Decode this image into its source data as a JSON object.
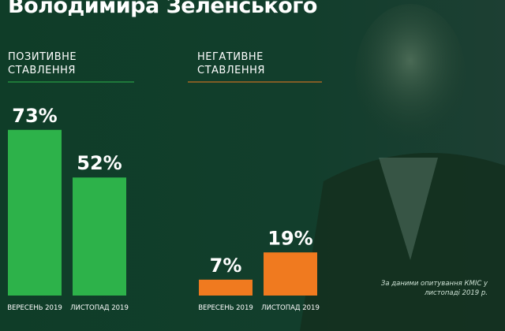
{
  "title": "Володимира Зеленського",
  "note": "За даними опитування КМІС у листопаді 2019 р.",
  "chart_data": [
    {
      "type": "bar",
      "title": "ПОЗИТИВНЕ СТАВЛЕННЯ",
      "color": "#2db24a",
      "categories": [
        "ВЕРЕСЕНЬ 2019",
        "ЛИСТОПАД 2019"
      ],
      "values": [
        73,
        52
      ],
      "value_labels": [
        "73%",
        "52%"
      ]
    },
    {
      "type": "bar",
      "title": "НЕГАТИВНЕ СТАВЛЕННЯ",
      "color": "#f07a1f",
      "categories": [
        "ВЕРЕСЕНЬ 2019",
        "ЛИСТОПАД 2019"
      ],
      "values": [
        7,
        19
      ],
      "value_labels": [
        "7%",
        "19%"
      ]
    }
  ]
}
